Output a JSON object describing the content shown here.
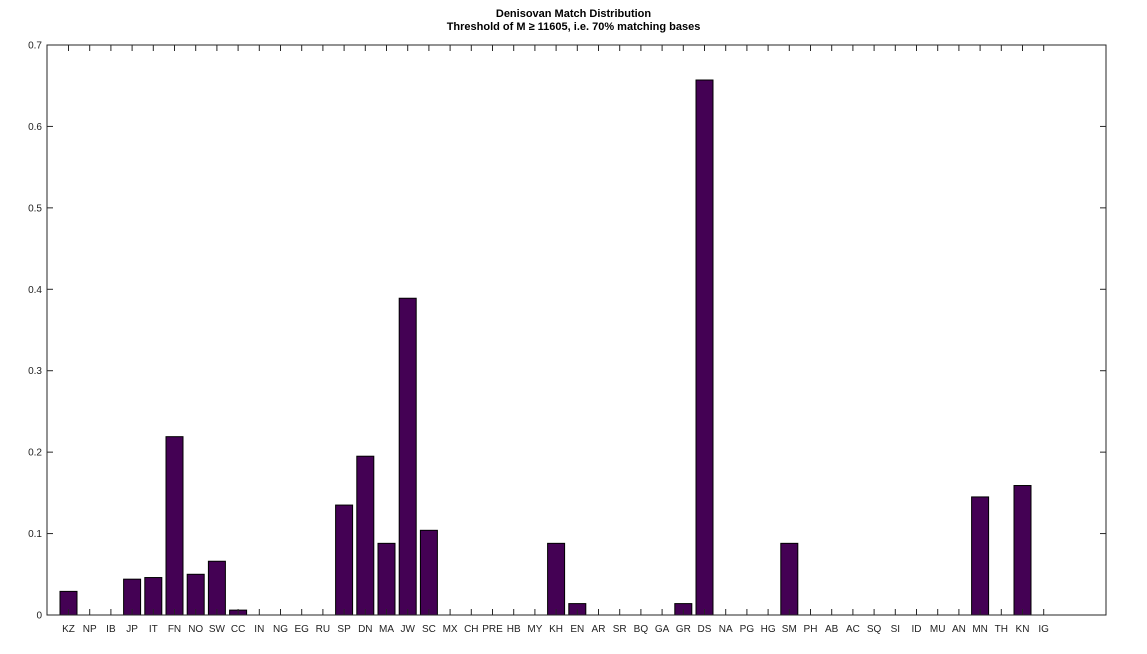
{
  "chart_data": {
    "type": "bar",
    "title": "Denisovan Match Distribution",
    "subtitle": "Threshold of M ≥ 11605, i.e. 70% matching bases",
    "xlabel": "",
    "ylabel": "",
    "ylim": [
      0,
      0.7
    ],
    "yticks": [
      0,
      0.1,
      0.2,
      0.3,
      0.4,
      0.5,
      0.6,
      0.7
    ],
    "ytick_labels": [
      "0",
      "0.1",
      "0.2",
      "0.3",
      "0.4",
      "0.5",
      "0.6",
      "0.7"
    ],
    "grid": false,
    "legend": "none",
    "bar_color": "#440154",
    "categories": [
      "KZ",
      "NP",
      "IB",
      "JP",
      "IT",
      "FN",
      "NO",
      "SW",
      "CC",
      "IN",
      "NG",
      "EG",
      "RU",
      "SP",
      "DN",
      "MA",
      "JW",
      "SC",
      "MX",
      "CH",
      "PRE",
      "HB",
      "MY",
      "KH",
      "EN",
      "AR",
      "SR",
      "BQ",
      "GA",
      "GR",
      "DS",
      "NA",
      "PG",
      "HG",
      "SM",
      "PH",
      "AB",
      "AC",
      "SQ",
      "SI",
      "ID",
      "MU",
      "AN",
      "MN",
      "TH",
      "KN",
      "IG"
    ],
    "values": [
      0.029,
      0,
      0,
      0.044,
      0.046,
      0.219,
      0.05,
      0.066,
      0.006,
      0,
      0,
      0,
      0,
      0.135,
      0.195,
      0.088,
      0.389,
      0.104,
      0,
      0,
      0,
      0,
      0,
      0.088,
      0.014,
      0,
      0,
      0,
      0,
      0.014,
      0.657,
      0,
      0,
      0,
      0.088,
      0,
      0,
      0,
      0,
      0,
      0,
      0,
      0,
      0.145,
      0,
      0.159,
      0
    ]
  }
}
